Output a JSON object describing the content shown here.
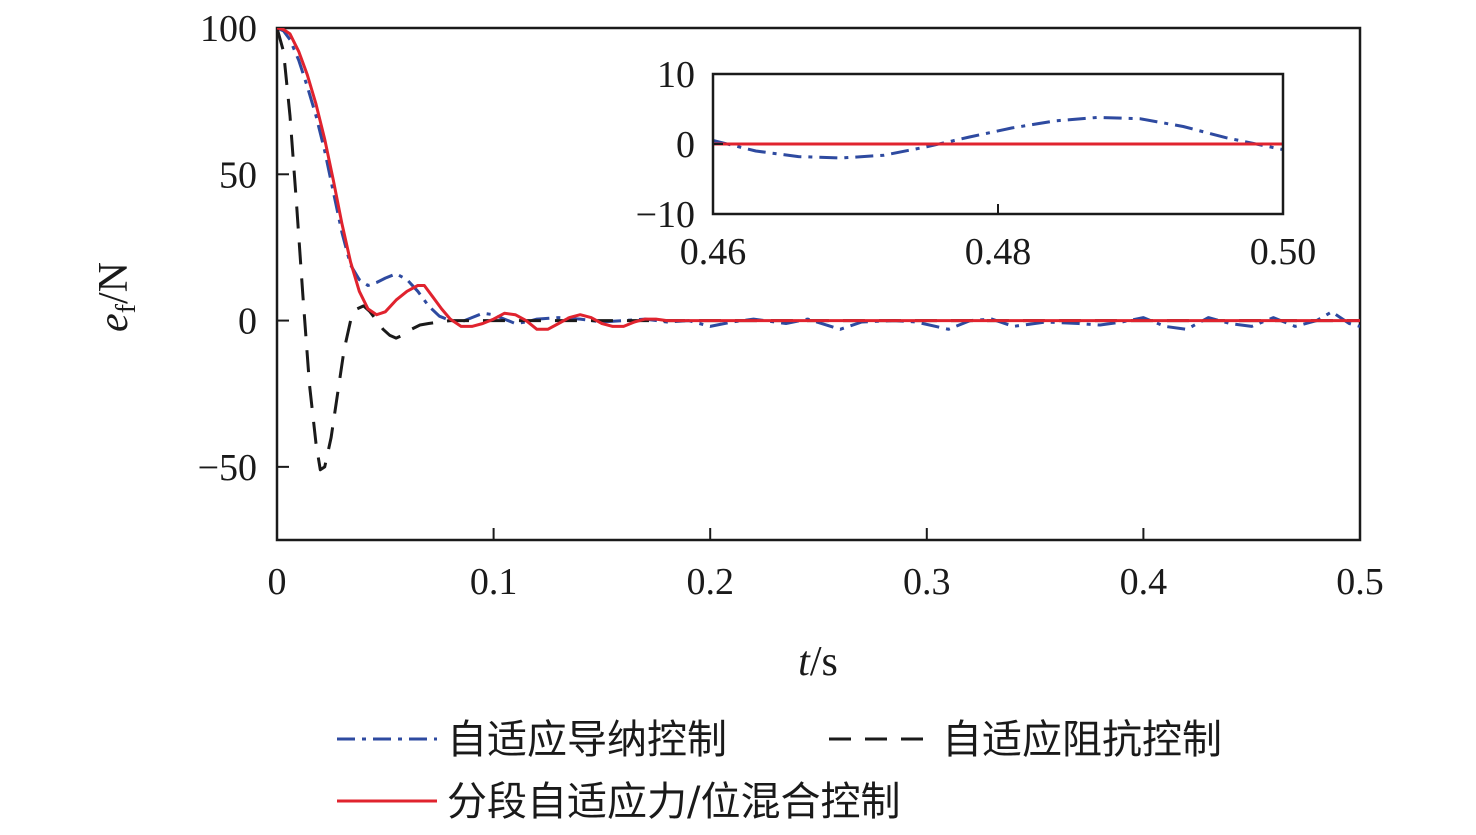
{
  "chart_data": [
    {
      "type": "line",
      "ylabel": {
        "var": "e",
        "sub": "f",
        "unit": "/N"
      },
      "xlabel": {
        "var": "t",
        "unit": "/s"
      },
      "xlim": [
        0,
        0.5
      ],
      "ylim": [
        -75,
        100
      ],
      "xticks": [
        0,
        0.1,
        0.2,
        0.3,
        0.4,
        0.5
      ],
      "xtick_labels": [
        "0",
        "0.1",
        "0.2",
        "0.3",
        "0.4",
        "0.5"
      ],
      "yticks": [
        -50,
        0,
        50,
        100
      ],
      "ytick_labels": [
        "−50",
        "0",
        "50",
        "100"
      ],
      "grid": false,
      "legend_position": "bottom",
      "series": [
        {
          "name": "自适应导纳控制",
          "color": "#2e4aa0",
          "style": "dashdot",
          "points": [
            [
              0,
              100
            ],
            [
              0.003,
              99
            ],
            [
              0.006,
              96
            ],
            [
              0.01,
              89
            ],
            [
              0.014,
              80
            ],
            [
              0.018,
              70
            ],
            [
              0.022,
              58
            ],
            [
              0.026,
              44
            ],
            [
              0.03,
              30
            ],
            [
              0.034,
              19
            ],
            [
              0.038,
              14
            ],
            [
              0.042,
              12
            ],
            [
              0.046,
              13
            ],
            [
              0.05,
              14.5
            ],
            [
              0.055,
              16
            ],
            [
              0.06,
              14
            ],
            [
              0.065,
              10
            ],
            [
              0.07,
              5
            ],
            [
              0.075,
              1.5
            ],
            [
              0.08,
              0
            ],
            [
              0.085,
              -0.5
            ],
            [
              0.09,
              1
            ],
            [
              0.095,
              2.5
            ],
            [
              0.1,
              2
            ],
            [
              0.105,
              0.5
            ],
            [
              0.11,
              -1
            ],
            [
              0.115,
              -0.5
            ],
            [
              0.12,
              0.5
            ],
            [
              0.13,
              1
            ],
            [
              0.14,
              0.5
            ],
            [
              0.15,
              -0.5
            ],
            [
              0.16,
              0
            ],
            [
              0.17,
              0.5
            ],
            [
              0.18,
              -0.5
            ],
            [
              0.19,
              0
            ],
            [
              0.2,
              -2
            ],
            [
              0.21,
              -0.5
            ],
            [
              0.22,
              0.5
            ],
            [
              0.235,
              -1
            ],
            [
              0.245,
              0.5
            ],
            [
              0.26,
              -3
            ],
            [
              0.27,
              -0.5
            ],
            [
              0.285,
              0
            ],
            [
              0.295,
              -0.5
            ],
            [
              0.31,
              -3
            ],
            [
              0.32,
              0
            ],
            [
              0.33,
              0.5
            ],
            [
              0.34,
              -2
            ],
            [
              0.355,
              -0.5
            ],
            [
              0.37,
              -1
            ],
            [
              0.38,
              -1.5
            ],
            [
              0.39,
              -0.5
            ],
            [
              0.4,
              1
            ],
            [
              0.41,
              -2
            ],
            [
              0.42,
              -3
            ],
            [
              0.43,
              1
            ],
            [
              0.44,
              -1
            ],
            [
              0.45,
              -2
            ],
            [
              0.46,
              1
            ],
            [
              0.47,
              -2
            ],
            [
              0.48,
              0
            ],
            [
              0.487,
              3
            ],
            [
              0.495,
              -1
            ],
            [
              0.5,
              -2
            ]
          ]
        },
        {
          "name": "自适应阻抗控制",
          "color": "#1a1a1a",
          "style": "dashed",
          "points": [
            [
              0,
              100
            ],
            [
              0.003,
              92
            ],
            [
              0.006,
              70
            ],
            [
              0.009,
              40
            ],
            [
              0.012,
              8
            ],
            [
              0.015,
              -22
            ],
            [
              0.018,
              -42
            ],
            [
              0.02,
              -51
            ],
            [
              0.022,
              -50
            ],
            [
              0.025,
              -40
            ],
            [
              0.028,
              -25
            ],
            [
              0.031,
              -10
            ],
            [
              0.034,
              0
            ],
            [
              0.037,
              4
            ],
            [
              0.04,
              5
            ],
            [
              0.043,
              3
            ],
            [
              0.046,
              0
            ],
            [
              0.049,
              -3
            ],
            [
              0.052,
              -5
            ],
            [
              0.055,
              -6
            ],
            [
              0.058,
              -5
            ],
            [
              0.062,
              -3
            ],
            [
              0.066,
              -1.5
            ],
            [
              0.07,
              -1
            ],
            [
              0.075,
              -0.5
            ],
            [
              0.08,
              0
            ],
            [
              0.09,
              0
            ],
            [
              0.1,
              0
            ],
            [
              0.2,
              0
            ],
            [
              0.3,
              0
            ],
            [
              0.4,
              0
            ],
            [
              0.5,
              0
            ]
          ]
        },
        {
          "name": "分段自适应力/位混合控制",
          "color": "#e0232e",
          "style": "solid",
          "points": [
            [
              0,
              100
            ],
            [
              0.003,
              99.5
            ],
            [
              0.006,
              98
            ],
            [
              0.01,
              92
            ],
            [
              0.014,
              84
            ],
            [
              0.018,
              74
            ],
            [
              0.022,
              62
            ],
            [
              0.026,
              48
            ],
            [
              0.03,
              33
            ],
            [
              0.034,
              20
            ],
            [
              0.038,
              10
            ],
            [
              0.042,
              4
            ],
            [
              0.046,
              2
            ],
            [
              0.05,
              3
            ],
            [
              0.055,
              7
            ],
            [
              0.06,
              10
            ],
            [
              0.065,
              12
            ],
            [
              0.068,
              12
            ],
            [
              0.072,
              8
            ],
            [
              0.076,
              4
            ],
            [
              0.08,
              0.5
            ],
            [
              0.085,
              -2
            ],
            [
              0.09,
              -2
            ],
            [
              0.095,
              -1
            ],
            [
              0.1,
              0.5
            ],
            [
              0.105,
              2.5
            ],
            [
              0.11,
              2
            ],
            [
              0.115,
              0
            ],
            [
              0.12,
              -3
            ],
            [
              0.125,
              -3
            ],
            [
              0.13,
              -1
            ],
            [
              0.135,
              1
            ],
            [
              0.14,
              2
            ],
            [
              0.145,
              1
            ],
            [
              0.15,
              -1
            ],
            [
              0.155,
              -2
            ],
            [
              0.16,
              -2
            ],
            [
              0.165,
              -0.5
            ],
            [
              0.17,
              0.5
            ],
            [
              0.175,
              0.5
            ],
            [
              0.18,
              0
            ],
            [
              0.2,
              0
            ],
            [
              0.3,
              0
            ],
            [
              0.4,
              0
            ],
            [
              0.5,
              0
            ]
          ]
        }
      ],
      "legend": [
        {
          "label": "自适应导纳控制",
          "series": 0
        },
        {
          "label": "自适应阻抗控制",
          "series": 1
        },
        {
          "label": "分段自适应力/位混合控制",
          "series": 2
        }
      ]
    },
    {
      "type": "line",
      "inset": true,
      "xlim": [
        0.46,
        0.5
      ],
      "ylim": [
        -10,
        10
      ],
      "xticks": [
        0.46,
        0.48,
        0.5
      ],
      "xtick_labels": [
        "0.46",
        "0.48",
        "0.50"
      ],
      "yticks": [
        -10,
        0,
        10
      ],
      "ytick_labels": [
        "−10",
        "0",
        "10"
      ],
      "series": [
        {
          "color": "#2e4aa0",
          "style": "dashdot",
          "points": [
            [
              0.46,
              0.5
            ],
            [
              0.463,
              -1
            ],
            [
              0.466,
              -1.8
            ],
            [
              0.469,
              -2
            ],
            [
              0.472,
              -1.6
            ],
            [
              0.475,
              -0.4
            ],
            [
              0.478,
              1
            ],
            [
              0.481,
              2.3
            ],
            [
              0.484,
              3.3
            ],
            [
              0.487,
              3.8
            ],
            [
              0.49,
              3.6
            ],
            [
              0.493,
              2.5
            ],
            [
              0.496,
              0.9
            ],
            [
              0.5,
              -0.8
            ]
          ]
        },
        {
          "color": "#1a1a1a",
          "style": "dashed",
          "points": [
            [
              0.46,
              0
            ],
            [
              0.5,
              0
            ]
          ]
        },
        {
          "color": "#e0232e",
          "style": "solid",
          "points": [
            [
              0.46,
              0
            ],
            [
              0.5,
              0
            ]
          ]
        }
      ]
    }
  ]
}
